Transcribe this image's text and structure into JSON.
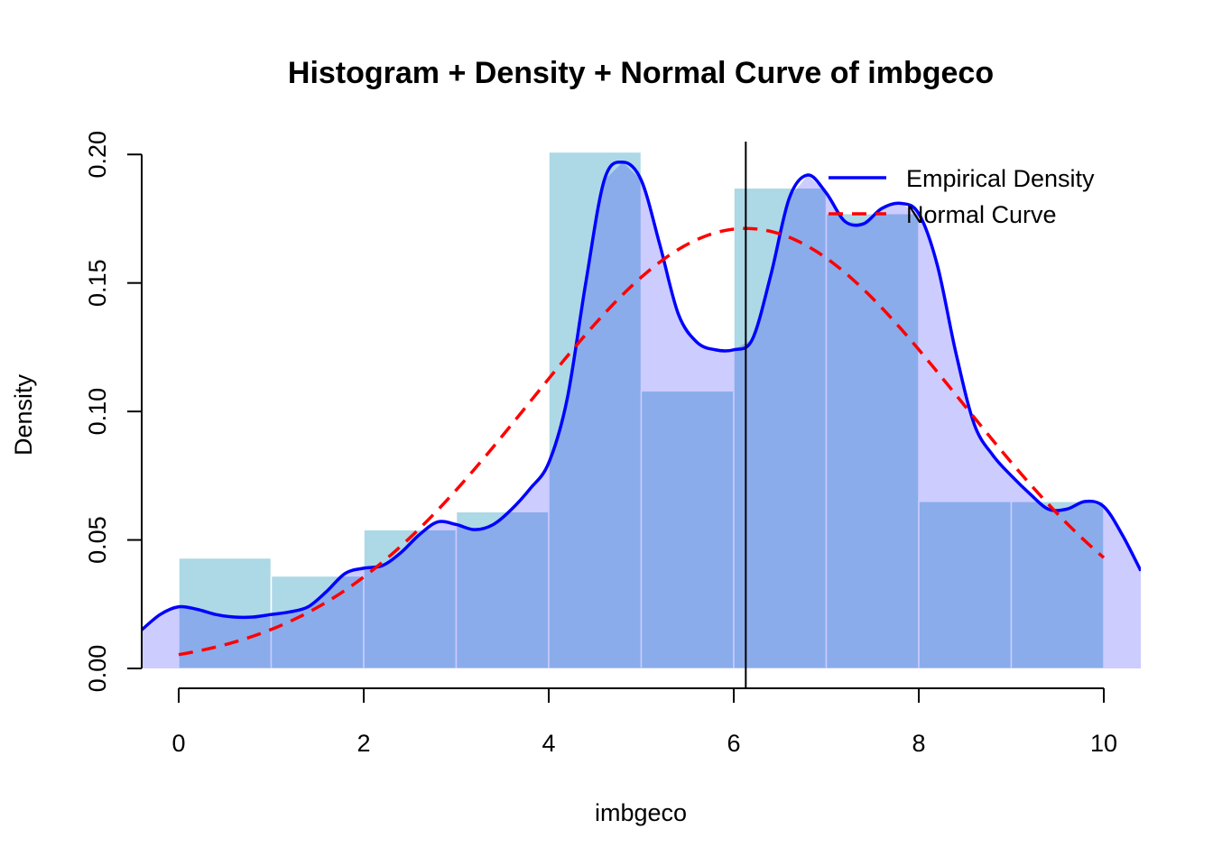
{
  "chart_data": {
    "type": "histogram",
    "title": "Histogram + Density + Normal Curve of imbgeco",
    "xlabel": "imbgeco",
    "ylabel": "Density",
    "xlim": [
      -0.4,
      10.4
    ],
    "ylim": [
      0,
      0.205
    ],
    "x_ticks": [
      0,
      2,
      4,
      6,
      8,
      10
    ],
    "x_tick_labels": [
      "0",
      "2",
      "4",
      "6",
      "8",
      "10"
    ],
    "y_ticks": [
      0,
      0.05,
      0.1,
      0.15,
      0.2
    ],
    "y_tick_labels": [
      "0.00",
      "0.05",
      "0.10",
      "0.15",
      "0.20"
    ],
    "histogram": {
      "bin_edges": [
        0,
        1,
        2,
        3,
        4,
        5,
        6,
        7,
        8,
        9,
        10
      ],
      "densities": [
        0.043,
        0.036,
        0.054,
        0.061,
        0.201,
        0.108,
        0.187,
        0.177,
        0.065,
        0.065
      ],
      "color": "#ADD8E6",
      "border": "#ffffff"
    },
    "density_fill": {
      "color": "#0000FF",
      "opacity": 0.2
    },
    "empirical_density": {
      "name": "Empirical Density",
      "color": "#0000FF",
      "x": [
        -0.4,
        -0.2,
        0,
        0.2,
        0.4,
        0.6,
        0.8,
        1.0,
        1.2,
        1.4,
        1.6,
        1.8,
        2.0,
        2.2,
        2.4,
        2.6,
        2.8,
        3.0,
        3.2,
        3.4,
        3.6,
        3.8,
        4.0,
        4.2,
        4.4,
        4.6,
        4.8,
        5.0,
        5.2,
        5.4,
        5.6,
        5.8,
        6.0,
        6.2,
        6.4,
        6.6,
        6.8,
        7.0,
        7.2,
        7.4,
        7.6,
        7.8,
        8.0,
        8.2,
        8.4,
        8.6,
        8.8,
        9.0,
        9.2,
        9.4,
        9.6,
        9.8,
        10.0,
        10.2,
        10.4
      ],
      "y": [
        0.015,
        0.021,
        0.024,
        0.023,
        0.021,
        0.02,
        0.02,
        0.021,
        0.022,
        0.024,
        0.03,
        0.037,
        0.039,
        0.04,
        0.045,
        0.052,
        0.057,
        0.056,
        0.054,
        0.056,
        0.062,
        0.07,
        0.08,
        0.105,
        0.15,
        0.19,
        0.197,
        0.19,
        0.165,
        0.138,
        0.127,
        0.124,
        0.124,
        0.128,
        0.153,
        0.183,
        0.192,
        0.185,
        0.174,
        0.173,
        0.179,
        0.181,
        0.177,
        0.157,
        0.123,
        0.095,
        0.083,
        0.075,
        0.068,
        0.062,
        0.062,
        0.065,
        0.063,
        0.052,
        0.038
      ]
    },
    "normal_curve": {
      "name": "Normal Curve",
      "color": "#FF0000",
      "style": "dashed",
      "mean": 6.13,
      "sd": 2.33,
      "x_range": [
        0,
        10
      ]
    },
    "mean_line": {
      "x": 6.13,
      "color": "#000000"
    },
    "legend": {
      "position": "top-right",
      "entries": [
        {
          "label": "Empirical Density",
          "color": "#0000FF",
          "style": "solid"
        },
        {
          "label": "Normal Curve",
          "color": "#FF0000",
          "style": "dashed"
        }
      ]
    }
  }
}
